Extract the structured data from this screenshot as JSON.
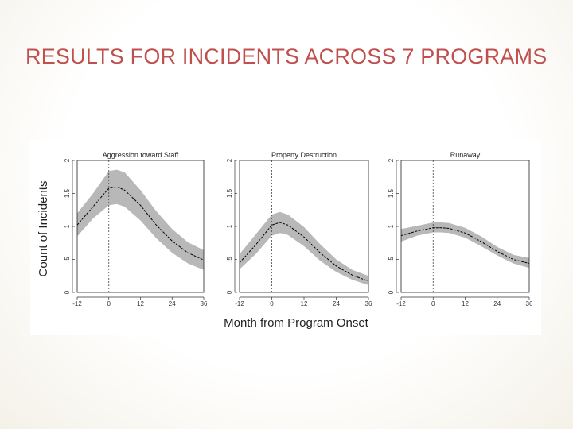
{
  "slide": {
    "title": "RESULTS FOR INCIDENTS ACROSS 7 PROGRAMS",
    "colors": {
      "title": "#c0504d",
      "rule": "#d99a5a",
      "band": "#b8b8b8",
      "line": "#000000"
    }
  },
  "figure": {
    "ylabel": "Count of Incidents",
    "xlabel": "Month from Program Onset"
  },
  "chart_data": [
    {
      "type": "line",
      "title": "Aggression toward Staff",
      "xlabel": "Month from Program Onset",
      "ylabel": "Count of Incidents",
      "xlim": [
        -12,
        36
      ],
      "ylim": [
        0,
        2
      ],
      "xticks": [
        "-12",
        "0",
        "12",
        "24",
        "36"
      ],
      "yticks": [
        "0",
        ".5",
        "1",
        "1.5",
        "2"
      ],
      "reference_line_x": 0,
      "grid": false,
      "x": [
        -12,
        -6,
        0,
        3,
        6,
        12,
        18,
        24,
        30,
        36
      ],
      "series": [
        {
          "role": "estimate",
          "values": [
            1.02,
            1.3,
            1.58,
            1.6,
            1.55,
            1.32,
            1.02,
            0.78,
            0.6,
            0.49
          ]
        },
        {
          "role": "lower",
          "values": [
            0.85,
            1.12,
            1.32,
            1.34,
            1.3,
            1.09,
            0.82,
            0.6,
            0.44,
            0.34
          ]
        },
        {
          "role": "upper",
          "values": [
            1.2,
            1.5,
            1.84,
            1.86,
            1.82,
            1.55,
            1.23,
            0.96,
            0.76,
            0.64
          ]
        }
      ]
    },
    {
      "type": "line",
      "title": "Property Destruction",
      "xlabel": "Month from Program Onset",
      "ylabel": "Count of Incidents",
      "xlim": [
        -12,
        36
      ],
      "ylim": [
        0,
        2
      ],
      "xticks": [
        "-12",
        "0",
        "12",
        "24",
        "36"
      ],
      "yticks": [
        "0",
        ".5",
        "1",
        "1.5",
        "2"
      ],
      "reference_line_x": 0,
      "grid": false,
      "x": [
        -12,
        -6,
        0,
        3,
        6,
        12,
        18,
        24,
        30,
        36
      ],
      "series": [
        {
          "role": "estimate",
          "values": [
            0.45,
            0.72,
            1.02,
            1.06,
            1.02,
            0.84,
            0.6,
            0.4,
            0.26,
            0.17
          ]
        },
        {
          "role": "lower",
          "values": [
            0.35,
            0.58,
            0.86,
            0.9,
            0.87,
            0.7,
            0.48,
            0.31,
            0.19,
            0.11
          ]
        },
        {
          "role": "upper",
          "values": [
            0.58,
            0.88,
            1.18,
            1.22,
            1.18,
            0.99,
            0.73,
            0.5,
            0.34,
            0.25
          ]
        }
      ]
    },
    {
      "type": "line",
      "title": "Runaway",
      "xlabel": "Month from Program Onset",
      "ylabel": "Count of Incidents",
      "xlim": [
        -12,
        36
      ],
      "ylim": [
        0,
        2
      ],
      "xticks": [
        "-12",
        "0",
        "12",
        "24",
        "36"
      ],
      "yticks": [
        "0",
        ".5",
        "1",
        "1.5",
        "2"
      ],
      "reference_line_x": 0,
      "grid": false,
      "x": [
        -12,
        -6,
        0,
        3,
        6,
        12,
        18,
        24,
        30,
        36
      ],
      "series": [
        {
          "role": "estimate",
          "values": [
            0.86,
            0.93,
            0.98,
            0.98,
            0.97,
            0.9,
            0.77,
            0.62,
            0.5,
            0.44
          ]
        },
        {
          "role": "lower",
          "values": [
            0.77,
            0.86,
            0.91,
            0.91,
            0.9,
            0.83,
            0.7,
            0.56,
            0.44,
            0.37
          ]
        },
        {
          "role": "upper",
          "values": [
            0.96,
            1.01,
            1.06,
            1.06,
            1.05,
            0.98,
            0.85,
            0.69,
            0.57,
            0.52
          ]
        }
      ]
    }
  ]
}
